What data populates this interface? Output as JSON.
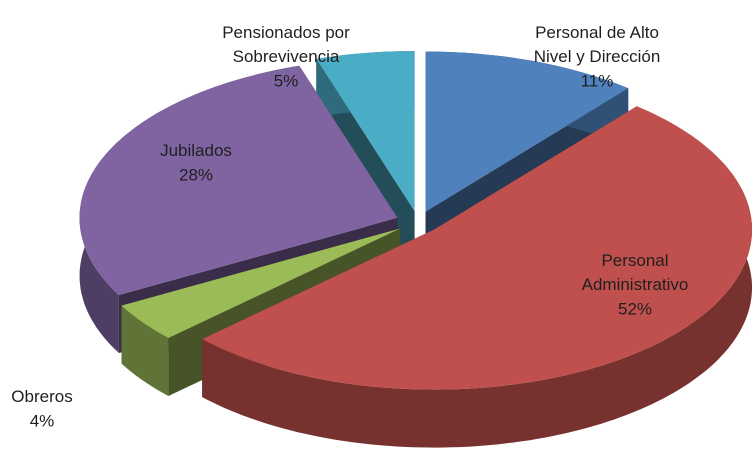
{
  "chart_data": {
    "type": "pie3d",
    "categories": [
      "Personal de Alto Nivel y Dirección",
      "Personal Administrativo",
      "Obreros",
      "Jubilados",
      "Pensionados por Sobrevivencia"
    ],
    "values": [
      11,
      52,
      4,
      28,
      5
    ],
    "value_labels": [
      "11%",
      "52%",
      "4%",
      "28%",
      "5%"
    ],
    "colors": [
      "#4f81bd",
      "#c0504d",
      "#9bbb59",
      "#8064a2",
      "#4bacc6"
    ]
  }
}
